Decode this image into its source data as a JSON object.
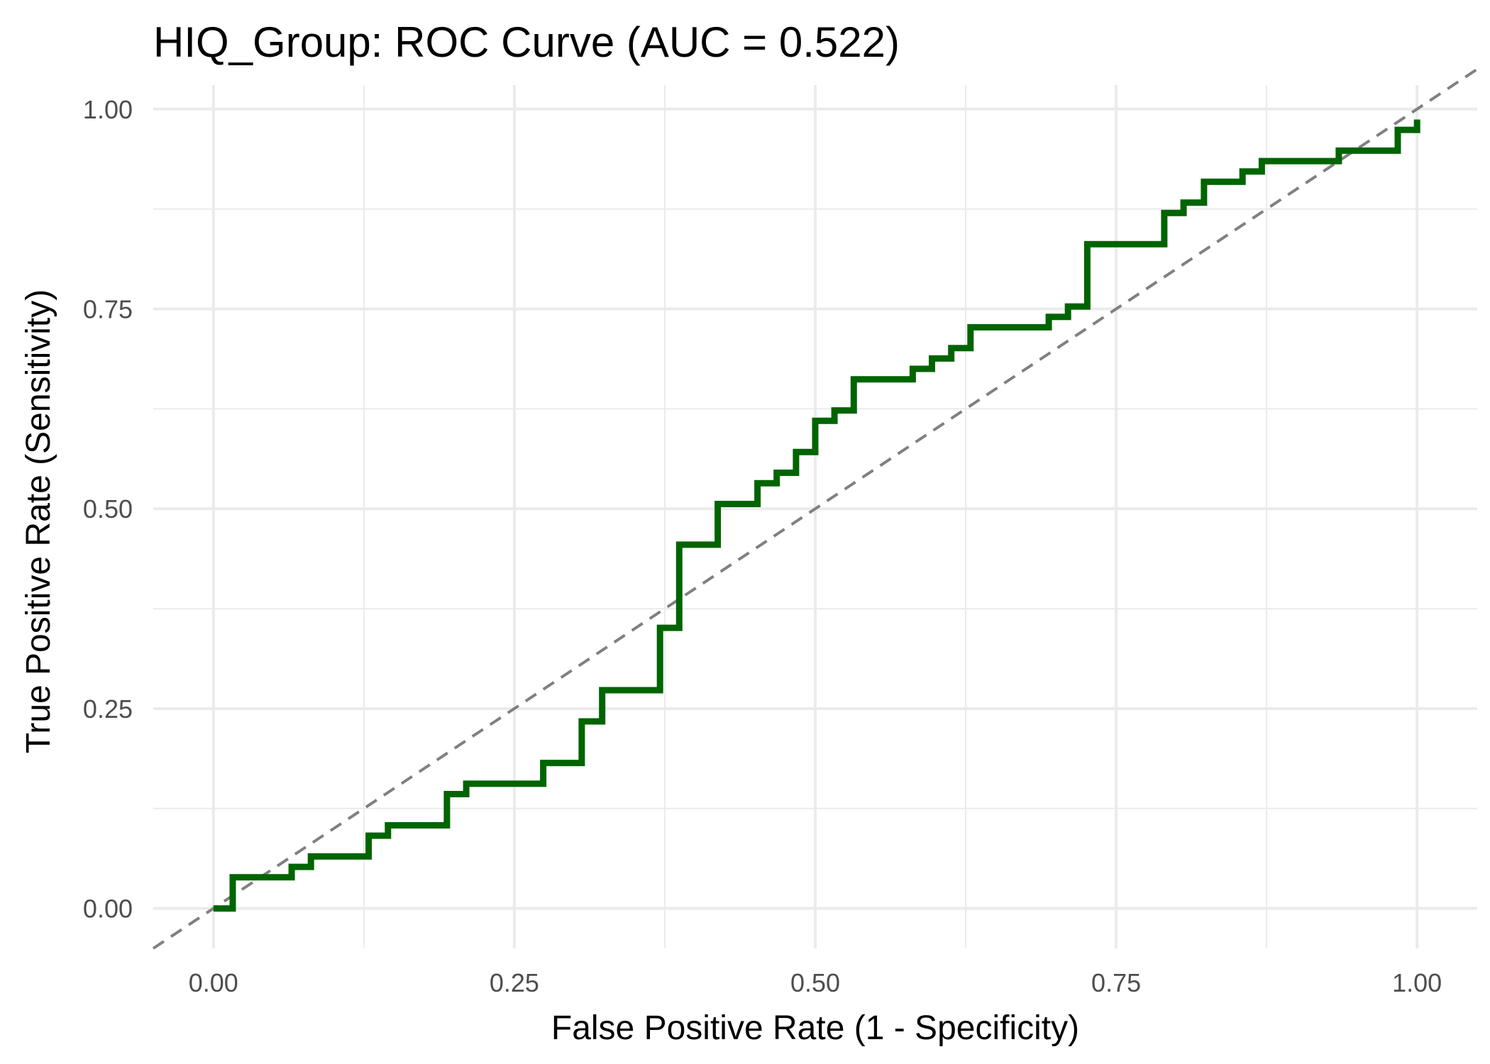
{
  "chart_data": {
    "type": "line",
    "title": "HIQ_Group: ROC Curve (AUC = 0.522)",
    "xlabel": "False Positive Rate (1 - Specificity)",
    "ylabel": "True Positive Rate (Sensitivity)",
    "xlim": [
      -0.05,
      1.05
    ],
    "ylim": [
      -0.05,
      1.03
    ],
    "x_ticks": [
      {
        "value": 0.0,
        "label": "0.00"
      },
      {
        "value": 0.25,
        "label": "0.25"
      },
      {
        "value": 0.5,
        "label": "0.50"
      },
      {
        "value": 0.75,
        "label": "0.75"
      },
      {
        "value": 1.0,
        "label": "1.00"
      }
    ],
    "y_ticks": [
      {
        "value": 0.0,
        "label": "0.00"
      },
      {
        "value": 0.25,
        "label": "0.25"
      },
      {
        "value": 0.5,
        "label": "0.50"
      },
      {
        "value": 0.75,
        "label": "0.75"
      },
      {
        "value": 1.0,
        "label": "1.00"
      }
    ],
    "grid": true,
    "series": [
      {
        "style": "step",
        "color": "#006400",
        "points": [
          [
            0.0,
            0.0
          ],
          [
            0.016,
            0.0
          ],
          [
            0.016,
            0.039
          ],
          [
            0.065,
            0.039
          ],
          [
            0.065,
            0.052
          ],
          [
            0.081,
            0.052
          ],
          [
            0.081,
            0.065
          ],
          [
            0.129,
            0.065
          ],
          [
            0.129,
            0.091
          ],
          [
            0.145,
            0.091
          ],
          [
            0.145,
            0.104
          ],
          [
            0.194,
            0.104
          ],
          [
            0.194,
            0.143
          ],
          [
            0.21,
            0.143
          ],
          [
            0.21,
            0.156
          ],
          [
            0.274,
            0.156
          ],
          [
            0.274,
            0.182
          ],
          [
            0.306,
            0.182
          ],
          [
            0.306,
            0.234
          ],
          [
            0.323,
            0.234
          ],
          [
            0.323,
            0.273
          ],
          [
            0.371,
            0.273
          ],
          [
            0.371,
            0.351
          ],
          [
            0.387,
            0.351
          ],
          [
            0.387,
            0.455
          ],
          [
            0.419,
            0.455
          ],
          [
            0.419,
            0.506
          ],
          [
            0.452,
            0.506
          ],
          [
            0.452,
            0.532
          ],
          [
            0.468,
            0.532
          ],
          [
            0.468,
            0.545
          ],
          [
            0.484,
            0.545
          ],
          [
            0.484,
            0.571
          ],
          [
            0.5,
            0.571
          ],
          [
            0.5,
            0.61
          ],
          [
            0.516,
            0.61
          ],
          [
            0.516,
            0.623
          ],
          [
            0.532,
            0.623
          ],
          [
            0.532,
            0.662
          ],
          [
            0.581,
            0.662
          ],
          [
            0.581,
            0.675
          ],
          [
            0.597,
            0.675
          ],
          [
            0.597,
            0.688
          ],
          [
            0.613,
            0.688
          ],
          [
            0.613,
            0.701
          ],
          [
            0.629,
            0.701
          ],
          [
            0.629,
            0.727
          ],
          [
            0.694,
            0.727
          ],
          [
            0.694,
            0.74
          ],
          [
            0.71,
            0.74
          ],
          [
            0.71,
            0.753
          ],
          [
            0.726,
            0.753
          ],
          [
            0.726,
            0.831
          ],
          [
            0.79,
            0.831
          ],
          [
            0.79,
            0.87
          ],
          [
            0.806,
            0.87
          ],
          [
            0.806,
            0.883
          ],
          [
            0.823,
            0.883
          ],
          [
            0.823,
            0.909
          ],
          [
            0.855,
            0.909
          ],
          [
            0.855,
            0.922
          ],
          [
            0.871,
            0.922
          ],
          [
            0.871,
            0.935
          ],
          [
            0.935,
            0.935
          ],
          [
            0.935,
            0.948
          ],
          [
            0.984,
            0.948
          ],
          [
            0.984,
            0.974
          ],
          [
            1.0,
            0.974
          ],
          [
            1.0,
            0.987
          ]
        ]
      }
    ],
    "reference_line": {
      "from": [
        -0.05,
        -0.05
      ],
      "to": [
        1.05,
        1.05
      ],
      "style": "dashed",
      "color": "#808080"
    }
  }
}
